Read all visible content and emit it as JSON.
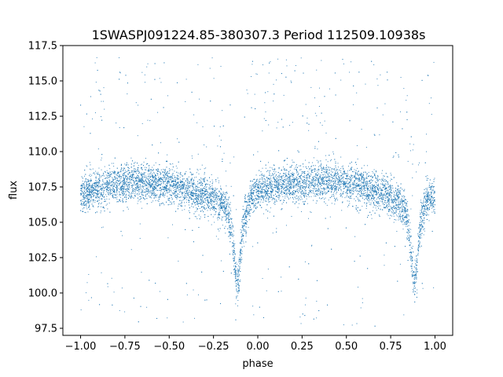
{
  "chart_data": {
    "type": "scatter",
    "title": "1SWASPJ091224.85-380307.3 Period 112509.10938s",
    "xlabel": "phase",
    "ylabel": "flux",
    "xlim": [
      -1.1,
      1.1
    ],
    "ylim": [
      97.0,
      117.5
    ],
    "x_ticks": [
      -1.0,
      -0.75,
      -0.5,
      -0.25,
      0.0,
      0.25,
      0.5,
      0.75,
      1.0
    ],
    "x_tick_labels": [
      "−1.00",
      "−0.75",
      "−0.50",
      "−0.25",
      "0.00",
      "0.25",
      "0.50",
      "0.75",
      "1.00"
    ],
    "y_ticks": [
      97.5,
      100.0,
      102.5,
      105.0,
      107.5,
      110.0,
      112.5,
      115.0,
      117.5
    ],
    "y_tick_labels": [
      "97.5",
      "100.0",
      "102.5",
      "105.0",
      "107.5",
      "110.0",
      "112.5",
      "115.0",
      "117.5"
    ],
    "grid": false,
    "legend": "none",
    "series": [
      {
        "color": "#1f77b4",
        "profile": {
          "phase": [
            -1.0,
            -0.95,
            -0.9,
            -0.85,
            -0.8,
            -0.75,
            -0.7,
            -0.65,
            -0.6,
            -0.55,
            -0.5,
            -0.45,
            -0.4,
            -0.35,
            -0.3,
            -0.25,
            -0.2,
            -0.175,
            -0.15,
            -0.14,
            -0.13,
            -0.12,
            -0.11,
            -0.1,
            -0.09,
            -0.075,
            -0.05,
            -0.025,
            0.0,
            0.05,
            0.1,
            0.15,
            0.2,
            0.25,
            0.3,
            0.35,
            0.4,
            0.45,
            0.5,
            0.55,
            0.6,
            0.65,
            0.7,
            0.75,
            0.8,
            0.825,
            0.85,
            0.86,
            0.87,
            0.88,
            0.89,
            0.9,
            0.91,
            0.925,
            0.95,
            0.975,
            1.0
          ],
          "flux": [
            106.8,
            107.2,
            107.4,
            107.6,
            107.6,
            107.8,
            107.9,
            107.9,
            107.8,
            107.7,
            107.6,
            107.5,
            107.3,
            107.1,
            106.9,
            106.6,
            106.3,
            105.9,
            104.8,
            103.5,
            102.0,
            100.8,
            100.9,
            102.3,
            103.8,
            105.3,
            106.3,
            106.9,
            107.1,
            107.3,
            107.5,
            107.6,
            107.7,
            107.8,
            107.9,
            107.9,
            107.9,
            107.8,
            107.7,
            107.6,
            107.4,
            107.2,
            107.0,
            106.7,
            106.4,
            106.0,
            104.9,
            103.4,
            102.0,
            100.9,
            101.0,
            102.5,
            104.0,
            105.5,
            106.5,
            106.8,
            106.8
          ]
        },
        "n_points": 9000,
        "scatter_std": 0.65,
        "outlier_fraction": 0.06
      }
    ]
  }
}
